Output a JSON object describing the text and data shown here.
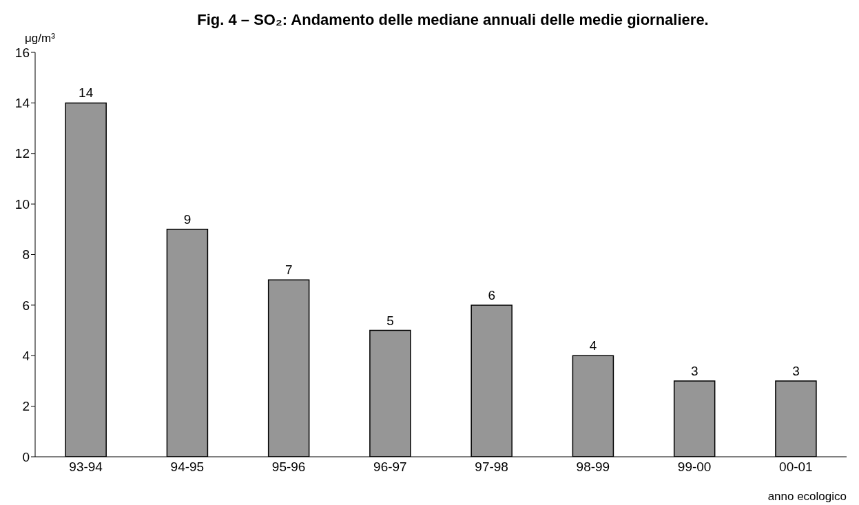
{
  "chart_data": {
    "type": "bar",
    "title": "Fig. 4 – SO₂: Andamento delle mediane annuali delle medie giornaliere.",
    "ylabel": "μg/m³",
    "xlabel": "anno ecologico",
    "categories": [
      "93-94",
      "94-95",
      "95-96",
      "96-97",
      "97-98",
      "98-99",
      "99-00",
      "00-01"
    ],
    "values": [
      14,
      9,
      7,
      5,
      6,
      4,
      3,
      3
    ],
    "color": "#969696",
    "ylim": [
      0,
      16
    ],
    "yticks": [
      0,
      2,
      4,
      6,
      8,
      10,
      12,
      14,
      16
    ],
    "grid": false,
    "data_labels": true
  }
}
